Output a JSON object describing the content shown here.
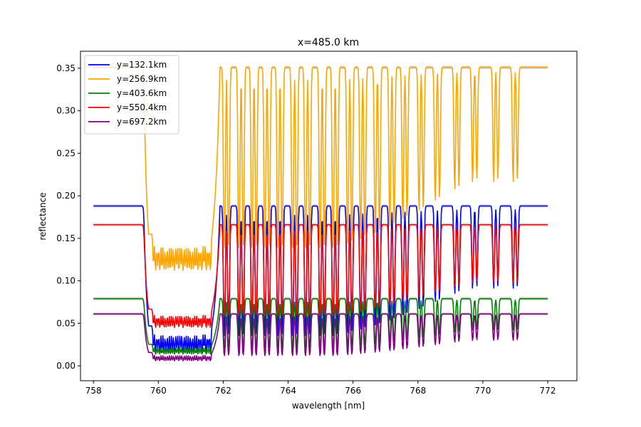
{
  "chart_data": {
    "type": "line",
    "title": "x=485.0 km",
    "xlabel": "wavelength [nm]",
    "ylabel": "reflectance",
    "xlim": [
      757.6,
      772.9
    ],
    "ylim": [
      -0.0175,
      0.37
    ],
    "xticks": [
      758,
      760,
      762,
      764,
      766,
      768,
      770,
      772
    ],
    "xtick_labels": [
      "758",
      "760",
      "762",
      "764",
      "766",
      "768",
      "770",
      "772"
    ],
    "yticks": [
      0.0,
      0.05,
      0.1,
      0.15,
      0.2,
      0.25,
      0.3,
      0.35
    ],
    "ytick_labels": [
      "0.00",
      "0.05",
      "0.10",
      "0.15",
      "0.20",
      "0.25",
      "0.30",
      "0.35"
    ],
    "grid": false,
    "legend_position": "upper-left",
    "uncertainty_band_color": "#bbbbbb",
    "series": [
      {
        "name": "y=132.1km",
        "color": "#0000ff",
        "baseline": 0.188,
        "floor_scale": 0.06
      },
      {
        "name": "y=256.9km",
        "color": "#ffa500",
        "baseline": 0.351,
        "floor_scale": 0.3
      },
      {
        "name": "y=403.6km",
        "color": "#008000",
        "baseline": 0.079,
        "floor_scale": 0.15
      },
      {
        "name": "y=550.4km",
        "color": "#ff0000",
        "baseline": 0.166,
        "floor_scale": 0.25
      },
      {
        "name": "y=697.2km",
        "color": "#800080",
        "baseline": 0.061,
        "floor_scale": 0.07
      }
    ]
  }
}
